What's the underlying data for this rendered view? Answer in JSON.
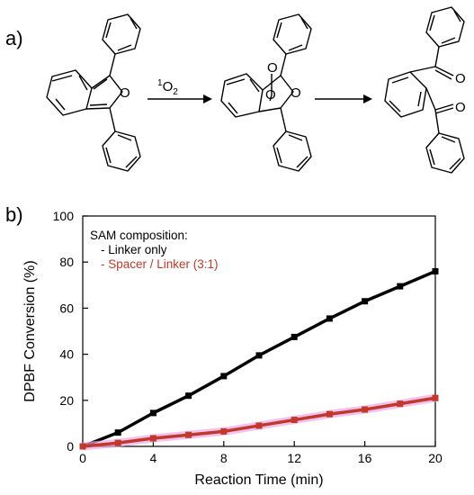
{
  "panel_a": {
    "label": "a)",
    "reagent_superscript": "1",
    "reagent_main": "O",
    "reagent_subscript": "2",
    "atom_o": "O"
  },
  "panel_b": {
    "label": "b)"
  },
  "chart_data": {
    "type": "line",
    "xlabel": "Reaction Time (min)",
    "ylabel": "DPBF Conversion (%)",
    "xlim": [
      0,
      20
    ],
    "ylim": [
      0,
      100
    ],
    "xticks": [
      0,
      4,
      8,
      12,
      16,
      20
    ],
    "yticks": [
      0,
      20,
      40,
      60,
      80,
      100
    ],
    "grid": false,
    "legend": {
      "title": "SAM composition:",
      "placement": "top-left",
      "entries": [
        "- Linker only",
        "- Spacer / Linker (3:1)"
      ]
    },
    "x": [
      0,
      2,
      4,
      6,
      8,
      10,
      12,
      14,
      16,
      18,
      20
    ],
    "series": [
      {
        "name": "Linker only",
        "color": "#000000",
        "values": [
          0,
          6,
          14.5,
          22,
          30.5,
          39.5,
          47.5,
          55.5,
          63,
          69.5,
          76
        ]
      },
      {
        "name": "Spacer / Linker (3:1)",
        "color": "#c0392b",
        "band_color": "#f0a8e8",
        "values": [
          0,
          1.5,
          3.5,
          5,
          6.5,
          9,
          11.5,
          14,
          16,
          18.5,
          21
        ]
      }
    ]
  }
}
